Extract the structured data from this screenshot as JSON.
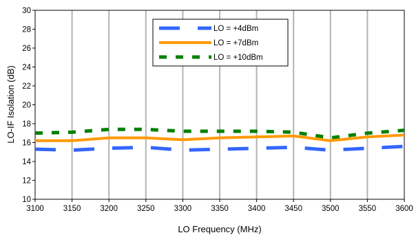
{
  "chart_data": {
    "type": "line",
    "title": "",
    "xlabel": "LO Frequency (MHz)",
    "ylabel": "LO-IF Isolation (dB)",
    "x": [
      3100,
      3150,
      3200,
      3250,
      3300,
      3350,
      3400,
      3450,
      3500,
      3550,
      3600
    ],
    "xlim": [
      3100,
      3600
    ],
    "ylim": [
      10,
      30
    ],
    "xticks": [
      3100,
      3150,
      3200,
      3250,
      3300,
      3350,
      3400,
      3450,
      3500,
      3550,
      3600
    ],
    "yticks": [
      10,
      12,
      14,
      16,
      18,
      20,
      22,
      24,
      26,
      28,
      30
    ],
    "grid": "vertical",
    "legend_position": "top-center",
    "series": [
      {
        "name": "LO = +4dBm",
        "color": "#3366ff",
        "style": "dashed",
        "values": [
          15.3,
          15.2,
          15.4,
          15.5,
          15.2,
          15.3,
          15.4,
          15.5,
          15.2,
          15.4,
          15.6
        ]
      },
      {
        "name": "LO = +7dBm",
        "color": "#ff9900",
        "style": "solid",
        "values": [
          16.2,
          16.2,
          16.5,
          16.5,
          16.3,
          16.5,
          16.6,
          16.7,
          16.2,
          16.6,
          16.8
        ]
      },
      {
        "name": "LO = +10dBm",
        "color": "#008000",
        "style": "dashed",
        "values": [
          17.0,
          17.1,
          17.4,
          17.4,
          17.2,
          17.2,
          17.2,
          17.1,
          16.5,
          17.0,
          17.3
        ]
      }
    ]
  }
}
